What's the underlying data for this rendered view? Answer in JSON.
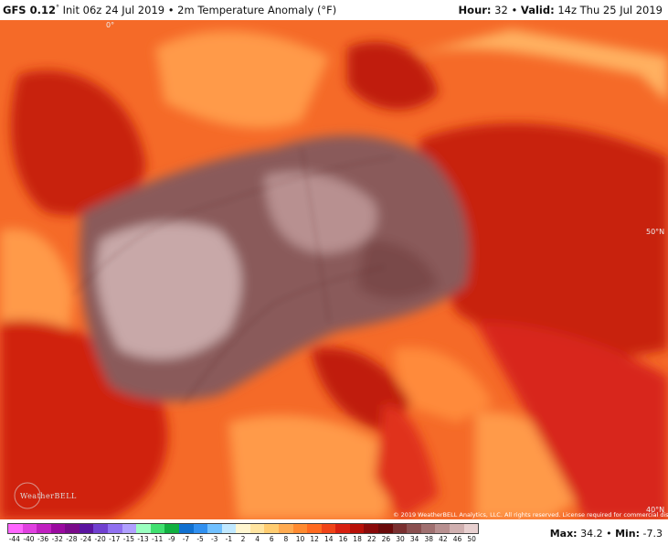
{
  "header": {
    "model": "GFS 0.12",
    "degree_mark": "°",
    "init_text": " Init 06z 24 Jul 2019 • 2m Temperature Anomaly (°F)",
    "hour_label": "Hour:",
    "hour_value": " 32 • ",
    "valid_label": "Valid:",
    "valid_value": " 14z Thu 25 Jul 2019"
  },
  "map": {
    "grid_labels": {
      "lon_0": "0°",
      "lat_50": "50°N",
      "lat_40": "40°N"
    },
    "watermark": "WeatherBELL",
    "attribution": "© 2019 WeatherBELL Analytics, LLC. All rights reserved. License required for commercial distribution."
  },
  "scale": {
    "labels": [
      "-44",
      "-40",
      "-36",
      "-32",
      "-28",
      "-24",
      "-20",
      "-17",
      "-15",
      "-13",
      "-11",
      "-9",
      "-7",
      "-5",
      "-3",
      "-1",
      "2",
      "4",
      "6",
      "8",
      "10",
      "12",
      "14",
      "16",
      "18",
      "22",
      "26",
      "30",
      "34",
      "38",
      "42",
      "46",
      "50"
    ],
    "colors": [
      "#ff66ff",
      "#e040e0",
      "#c020c0",
      "#9a0aa0",
      "#7a0a8a",
      "#5a14a0",
      "#7040d0",
      "#9070f0",
      "#b0a0ff",
      "#9affc0",
      "#40e070",
      "#10b040",
      "#1070d0",
      "#3090f0",
      "#70c0ff",
      "#c0e8ff",
      "#fff6d0",
      "#ffe4a0",
      "#ffcc70",
      "#ffaa50",
      "#ff8a30",
      "#ff6a20",
      "#f04418",
      "#d82010",
      "#b81008",
      "#8a0a0a",
      "#6a0a0a",
      "#7a3030",
      "#8a5050",
      "#a07070",
      "#b89090",
      "#d0b0b0",
      "#e8d0d0"
    ]
  },
  "stats": {
    "max_label": "Max:",
    "max_value": " 34.2 • ",
    "min_label": "Min:",
    "min_value": " -7.3"
  },
  "colors": {
    "hot_core": "#8a5a5a",
    "hot_pale": "#c8a8a8",
    "deep_red": "#b01208",
    "red": "#e02a14",
    "orange_red": "#f05a20",
    "orange": "#ff8a3a",
    "light_orange": "#ffae60"
  }
}
